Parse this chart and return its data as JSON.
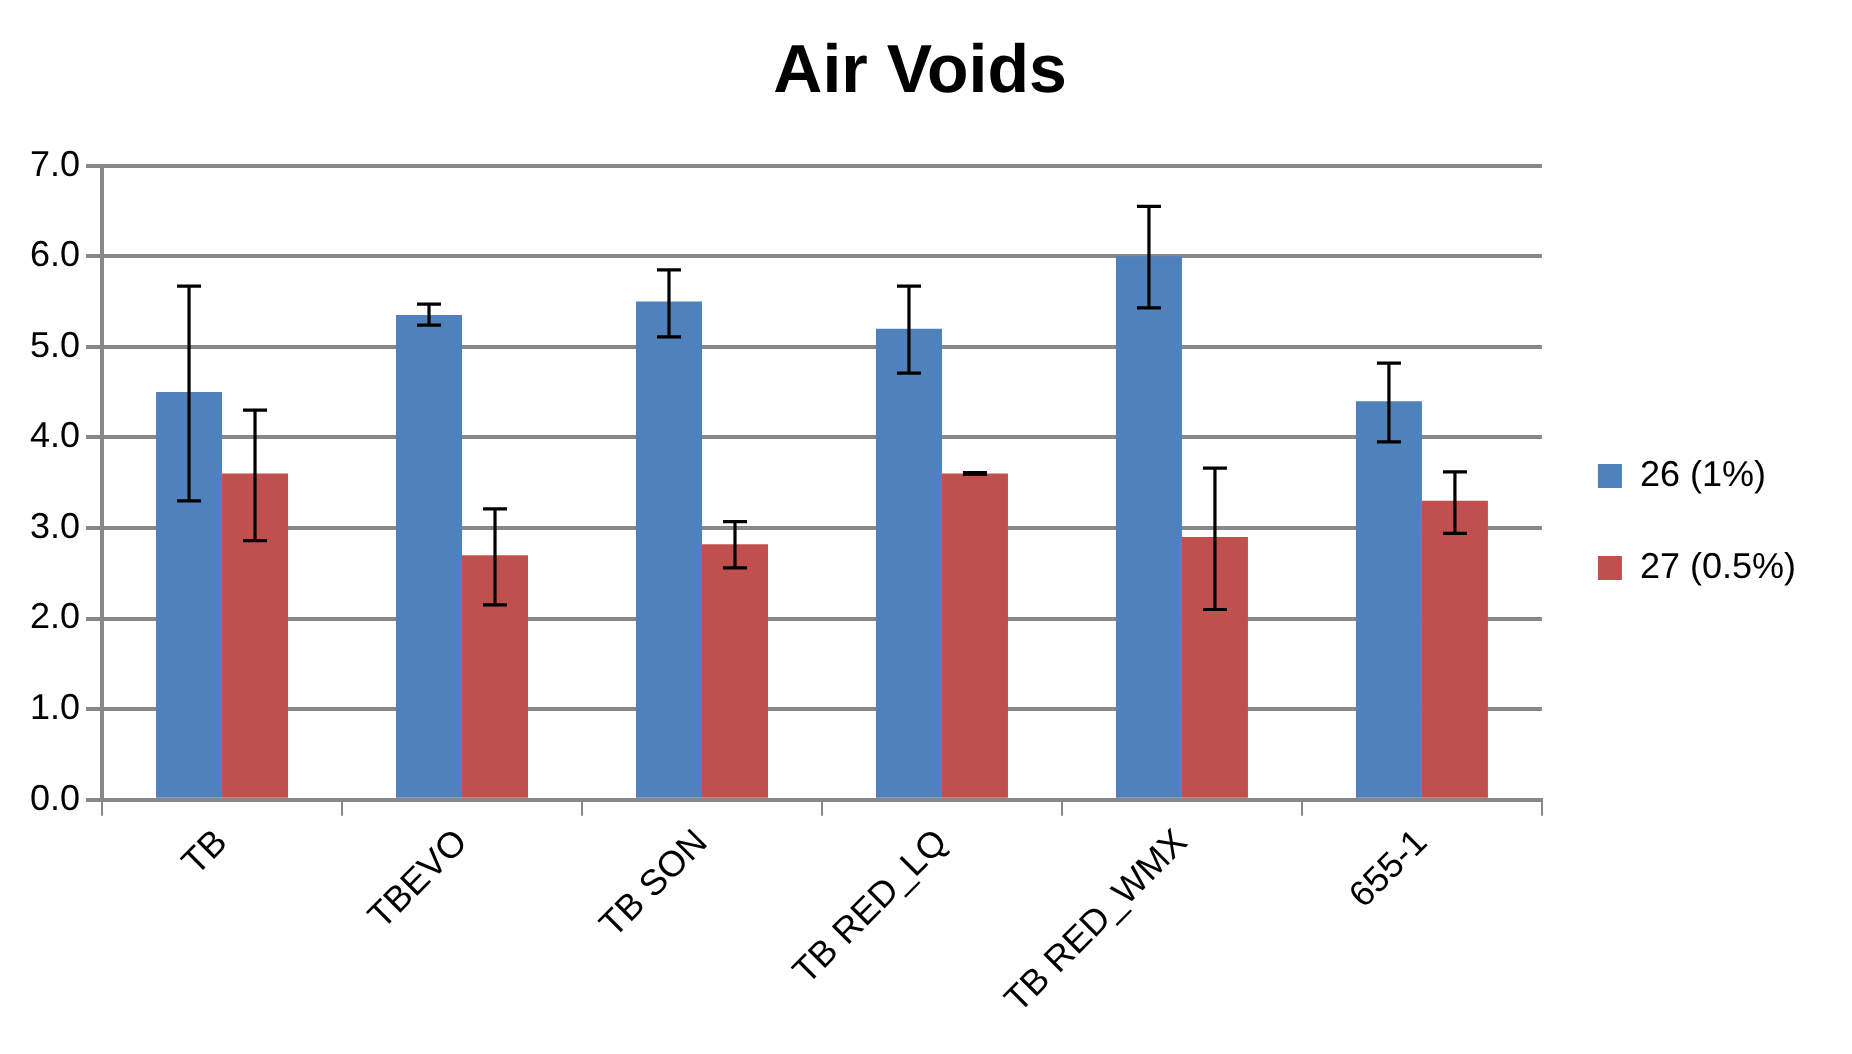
{
  "chart_data": {
    "type": "bar",
    "title": "Air Voids",
    "categories": [
      "TB",
      "TBEVO",
      "TB SON",
      "TB RED_LQ",
      "TB RED_WMX",
      "655-1"
    ],
    "series": [
      {
        "name": "26 (1%)",
        "color": "#4f81bd",
        "values": [
          4.5,
          5.35,
          5.5,
          5.2,
          6.0,
          4.4
        ],
        "errors": [
          [
            3.3,
            5.67
          ],
          [
            5.24,
            5.47
          ],
          [
            5.11,
            5.85
          ],
          [
            4.71,
            5.67
          ],
          [
            5.43,
            6.55
          ],
          [
            3.95,
            4.82
          ]
        ]
      },
      {
        "name": "27 (0.5%)",
        "color": "#c0504d",
        "values": [
          3.6,
          2.7,
          2.82,
          3.6,
          2.9,
          3.3
        ],
        "errors": [
          [
            2.86,
            4.3
          ],
          [
            2.15,
            3.21
          ],
          [
            2.56,
            3.07
          ],
          [
            3.59,
            3.61
          ],
          [
            2.1,
            3.66
          ],
          [
            2.94,
            3.62
          ]
        ]
      }
    ],
    "ylim": [
      0,
      7
    ],
    "yticks": [
      {
        "value": 0,
        "label": "0.0"
      },
      {
        "value": 1,
        "label": "1.0"
      },
      {
        "value": 2,
        "label": "2.0"
      },
      {
        "value": 3,
        "label": "3.0"
      },
      {
        "value": 4,
        "label": "4.0"
      },
      {
        "value": 5,
        "label": "5.0"
      },
      {
        "value": 6,
        "label": "6.0"
      },
      {
        "value": 7,
        "label": "7.0"
      }
    ],
    "grid": "y",
    "legend": "right"
  }
}
